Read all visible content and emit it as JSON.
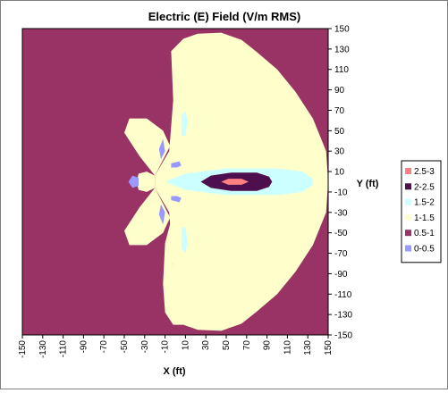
{
  "chart_data": {
    "type": "heatmap",
    "title": "Electric (E) Field (V/m RMS)",
    "xlabel": "X (ft)",
    "ylabel": "Y (ft)",
    "xlim": [
      -150,
      150
    ],
    "ylim": [
      -150,
      150
    ],
    "x_ticks": [
      "-150",
      "-130",
      "-110",
      "-90",
      "-70",
      "-50",
      "-30",
      "-10",
      "10",
      "30",
      "50",
      "70",
      "90",
      "110",
      "130",
      "150"
    ],
    "y_ticks": [
      "150",
      "130",
      "110",
      "90",
      "70",
      "50",
      "30",
      "10",
      "-10",
      "-30",
      "-50",
      "-70",
      "-90",
      "-110",
      "-130",
      "-150"
    ],
    "legend": {
      "placement": "right",
      "entries": [
        {
          "label": "2.5-3",
          "color": "#ff8080"
        },
        {
          "label": "2-2.5",
          "color": "#4d0f4d"
        },
        {
          "label": "1.5-2",
          "color": "#ccffff"
        },
        {
          "label": "1-1.5",
          "color": "#ffffcc"
        },
        {
          "label": "0.5-1",
          "color": "#993366"
        },
        {
          "label": "0-0.5",
          "color": "#9999ff"
        }
      ]
    },
    "background_band": "0.5-1",
    "regions": [
      {
        "band": "1-1.5",
        "description": "large lobe east of x=10",
        "polygon": [
          [
            -4,
            128
          ],
          [
            8,
            140
          ],
          [
            22,
            145
          ],
          [
            45,
            146
          ],
          [
            65,
            139
          ],
          [
            80,
            127
          ],
          [
            100,
            110
          ],
          [
            118,
            88
          ],
          [
            135,
            62
          ],
          [
            148,
            30
          ],
          [
            150,
            0
          ],
          [
            148,
            -30
          ],
          [
            135,
            -62
          ],
          [
            118,
            -88
          ],
          [
            100,
            -110
          ],
          [
            80,
            -127
          ],
          [
            65,
            -139
          ],
          [
            45,
            -146
          ],
          [
            22,
            -145
          ],
          [
            8,
            -140
          ],
          [
            -4,
            -128
          ],
          [
            -2,
            -80
          ],
          [
            -6,
            -30
          ],
          [
            -20,
            -6
          ],
          [
            -20,
            6
          ],
          [
            -6,
            30
          ],
          [
            -2,
            80
          ]
        ]
      },
      {
        "band": "1-1.5",
        "description": "upper-left arm",
        "polygon": [
          [
            -20,
            6
          ],
          [
            -35,
            25
          ],
          [
            -50,
            48
          ],
          [
            -45,
            62
          ],
          [
            -28,
            62
          ],
          [
            -12,
            50
          ],
          [
            -5,
            35
          ]
        ]
      },
      {
        "band": "1-1.5",
        "description": "lower-left arm",
        "polygon": [
          [
            -20,
            -6
          ],
          [
            -35,
            -25
          ],
          [
            -50,
            -48
          ],
          [
            -45,
            -62
          ],
          [
            -28,
            -62
          ],
          [
            -12,
            -50
          ],
          [
            -5,
            -35
          ]
        ]
      },
      {
        "band": "1-1.5",
        "description": "center-left lobe",
        "polygon": [
          [
            -38,
            0
          ],
          [
            -36,
            8
          ],
          [
            -28,
            10
          ],
          [
            -20,
            6
          ],
          [
            -20,
            -6
          ],
          [
            -28,
            -10
          ],
          [
            -36,
            -8
          ]
        ]
      },
      {
        "band": "1-1.5",
        "description": "lower narrow arm",
        "polygon": [
          [
            -2,
            -30
          ],
          [
            -10,
            -60
          ],
          [
            -12,
            -100
          ],
          [
            -10,
            -128
          ],
          [
            -2,
            -140
          ],
          [
            8,
            -140
          ],
          [
            -2,
            -100
          ]
        ]
      },
      {
        "band": "1.5-2",
        "description": "center band along y=0",
        "polygon": [
          [
            -10,
            0
          ],
          [
            10,
            8
          ],
          [
            50,
            13
          ],
          [
            100,
            13
          ],
          [
            125,
            10
          ],
          [
            135,
            3
          ],
          [
            135,
            -3
          ],
          [
            125,
            -10
          ],
          [
            100,
            -13
          ],
          [
            50,
            -13
          ],
          [
            10,
            -8
          ]
        ]
      },
      {
        "band": "1.5-2",
        "description": "upper sliver",
        "polygon": [
          [
            6,
            65
          ],
          [
            10,
            70
          ],
          [
            12,
            60
          ],
          [
            10,
            45
          ],
          [
            6,
            45
          ]
        ]
      },
      {
        "band": "1.5-2",
        "description": "lower sliver",
        "polygon": [
          [
            6,
            -65
          ],
          [
            10,
            -70
          ],
          [
            12,
            -60
          ],
          [
            10,
            -45
          ],
          [
            6,
            -45
          ]
        ]
      },
      {
        "band": "2-2.5",
        "description": "core ellipse",
        "polygon": [
          [
            25,
            0
          ],
          [
            35,
            6
          ],
          [
            55,
            9
          ],
          [
            80,
            9
          ],
          [
            92,
            5
          ],
          [
            95,
            0
          ],
          [
            92,
            -5
          ],
          [
            80,
            -9
          ],
          [
            55,
            -9
          ],
          [
            35,
            -6
          ]
        ]
      },
      {
        "band": "2.5-3",
        "description": "peak",
        "polygon": [
          [
            45,
            0
          ],
          [
            52,
            3
          ],
          [
            65,
            3
          ],
          [
            72,
            0
          ],
          [
            65,
            -3
          ],
          [
            52,
            -3
          ]
        ]
      },
      {
        "band": "0-0.5",
        "description": "upper-left speck",
        "polygon": [
          [
            -12,
            42
          ],
          [
            -10,
            30
          ],
          [
            -14,
            22
          ],
          [
            -16,
            32
          ]
        ]
      },
      {
        "band": "0-0.5",
        "description": "lower-left speck",
        "polygon": [
          [
            -12,
            -42
          ],
          [
            -10,
            -30
          ],
          [
            -14,
            -22
          ],
          [
            -16,
            -32
          ]
        ]
      },
      {
        "band": "0-0.5",
        "description": "upper small",
        "polygon": [
          [
            -4,
            18
          ],
          [
            4,
            20
          ],
          [
            6,
            16
          ],
          [
            2,
            14
          ],
          [
            -4,
            14
          ]
        ]
      },
      {
        "band": "0-0.5",
        "description": "lower small",
        "polygon": [
          [
            -4,
            -18
          ],
          [
            4,
            -20
          ],
          [
            6,
            -16
          ],
          [
            2,
            -14
          ],
          [
            -4,
            -14
          ]
        ]
      },
      {
        "band": "0-0.5",
        "description": "left notch",
        "polygon": [
          [
            -46,
            0
          ],
          [
            -42,
            6
          ],
          [
            -36,
            4
          ],
          [
            -36,
            -4
          ],
          [
            -42,
            -6
          ]
        ]
      }
    ]
  }
}
